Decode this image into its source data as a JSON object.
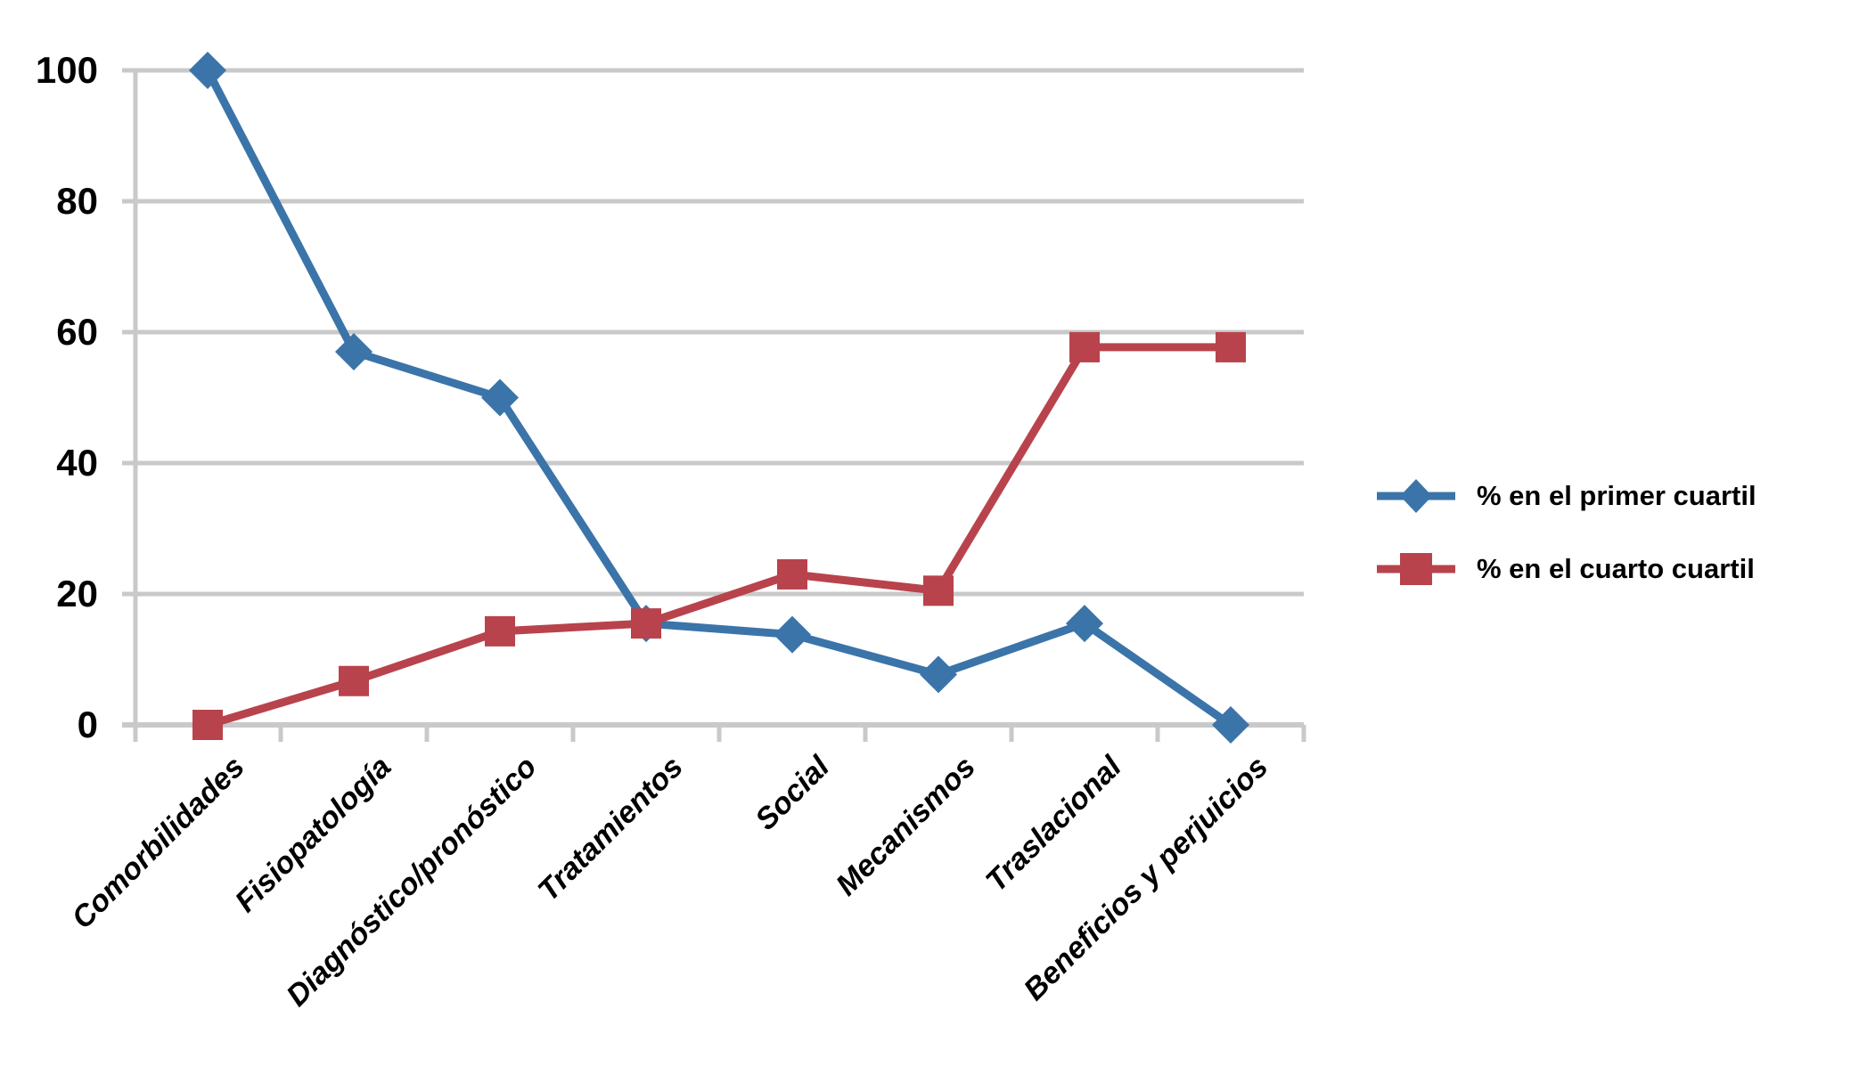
{
  "chart_data": {
    "type": "line",
    "categories": [
      "Comorbilidades",
      "Fisiopatología",
      "Diagnóstico/pronóstico",
      "Tratamientos",
      "Social",
      "Mecanismos",
      "Traslacional",
      "Beneficios y perjuicios"
    ],
    "series": [
      {
        "name": "% en el primer cuartil",
        "marker": "diamond",
        "color": "#3B74A9",
        "values": [
          100,
          57,
          50,
          15.5,
          13.8,
          7.7,
          15.5,
          0
        ]
      },
      {
        "name": "% en el cuarto cuartil",
        "marker": "square",
        "color": "#B8434C",
        "values": [
          0,
          6.7,
          14.3,
          15.5,
          23,
          20.5,
          57.7,
          57.7
        ]
      }
    ],
    "ylim": [
      0,
      100
    ],
    "yticks": [
      0,
      20,
      40,
      60,
      80,
      100
    ],
    "grid": "horizontal-gridlines",
    "gridline_color": "#C9C9C9",
    "text_color": "#000000",
    "legend_position": "right-middle",
    "xlabel": "",
    "ylabel": "",
    "title": ""
  }
}
